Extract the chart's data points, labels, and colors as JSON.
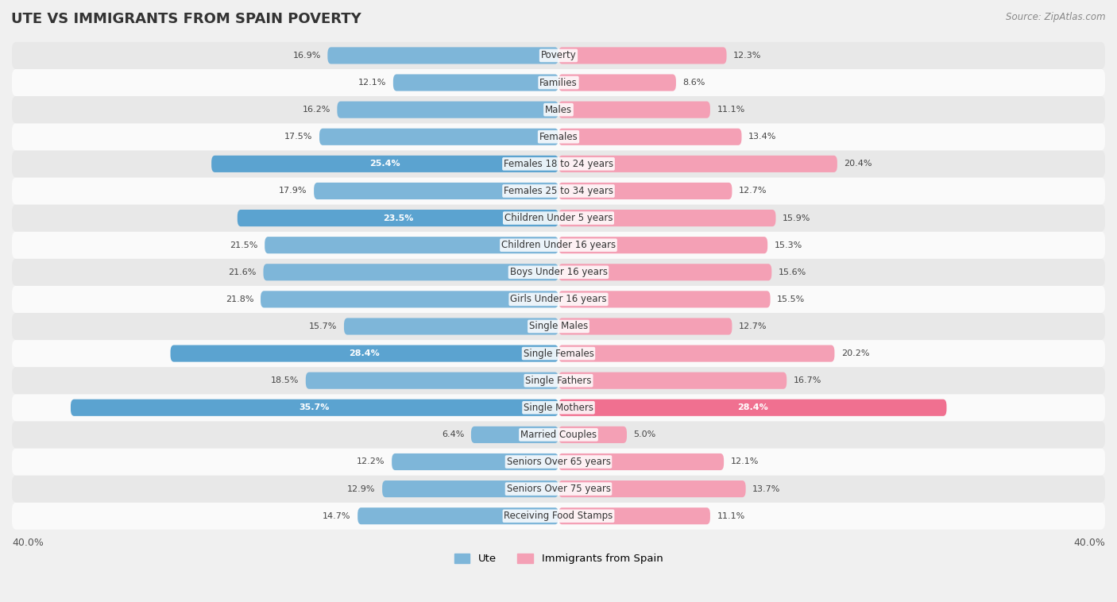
{
  "title": "UTE VS IMMIGRANTS FROM SPAIN POVERTY",
  "source": "Source: ZipAtlas.com",
  "categories": [
    "Poverty",
    "Families",
    "Males",
    "Females",
    "Females 18 to 24 years",
    "Females 25 to 34 years",
    "Children Under 5 years",
    "Children Under 16 years",
    "Boys Under 16 years",
    "Girls Under 16 years",
    "Single Males",
    "Single Females",
    "Single Fathers",
    "Single Mothers",
    "Married Couples",
    "Seniors Over 65 years",
    "Seniors Over 75 years",
    "Receiving Food Stamps"
  ],
  "ute_values": [
    16.9,
    12.1,
    16.2,
    17.5,
    25.4,
    17.9,
    23.5,
    21.5,
    21.6,
    21.8,
    15.7,
    28.4,
    18.5,
    35.7,
    6.4,
    12.2,
    12.9,
    14.7
  ],
  "spain_values": [
    12.3,
    8.6,
    11.1,
    13.4,
    20.4,
    12.7,
    15.9,
    15.3,
    15.6,
    15.5,
    12.7,
    20.2,
    16.7,
    28.4,
    5.0,
    12.1,
    13.7,
    11.1
  ],
  "ute_color": "#7EB6D9",
  "ute_color_bright": "#5BA3D0",
  "spain_color": "#F4A0B5",
  "spain_color_bright": "#F07090",
  "axis_limit": 40.0,
  "legend_ute": "Ute",
  "legend_spain": "Immigrants from Spain",
  "background_color": "#f0f0f0",
  "row_bg_light": "#fafafa",
  "row_bg_dark": "#e8e8e8",
  "title_fontsize": 13,
  "label_fontsize": 8.5,
  "value_fontsize": 8,
  "source_fontsize": 8.5,
  "white_text_threshold": 22.0
}
